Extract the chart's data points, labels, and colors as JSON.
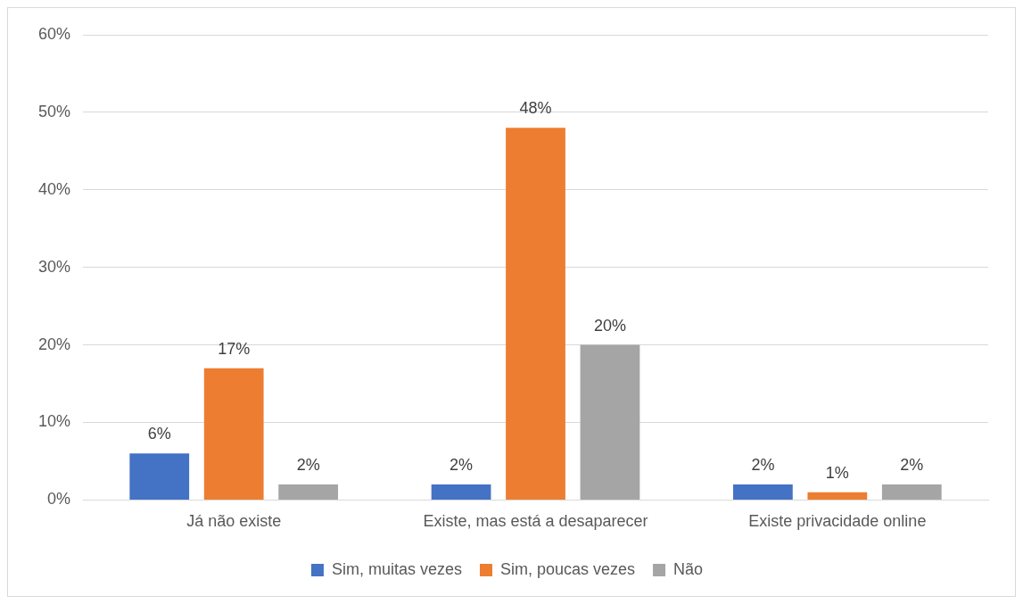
{
  "chart_data": {
    "type": "bar",
    "categories": [
      "Já não existe",
      "Existe, mas está a desaparecer",
      "Existe privacidade online"
    ],
    "series": [
      {
        "name": "Sim, muitas vezes",
        "color": "#4472c4",
        "values": [
          6,
          2,
          2
        ],
        "value_labels": [
          "6%",
          "2%",
          "2%"
        ]
      },
      {
        "name": "Sim, poucas vezes",
        "color": "#ed7d31",
        "values": [
          17,
          48,
          1
        ],
        "value_labels": [
          "17%",
          "48%",
          "1%"
        ]
      },
      {
        "name": "Não",
        "color": "#a5a5a5",
        "values": [
          2,
          20,
          2
        ],
        "value_labels": [
          "2%",
          "20%",
          "2%"
        ]
      }
    ],
    "ylim": [
      0,
      60
    ],
    "yticks": [
      {
        "value": 0,
        "label": "0%"
      },
      {
        "value": 10,
        "label": "10%"
      },
      {
        "value": 20,
        "label": "20%"
      },
      {
        "value": 30,
        "label": "30%"
      },
      {
        "value": 40,
        "label": "40%"
      },
      {
        "value": 50,
        "label": "50%"
      },
      {
        "value": 60,
        "label": "60%"
      }
    ],
    "grid": "y",
    "legend": "bottom"
  }
}
